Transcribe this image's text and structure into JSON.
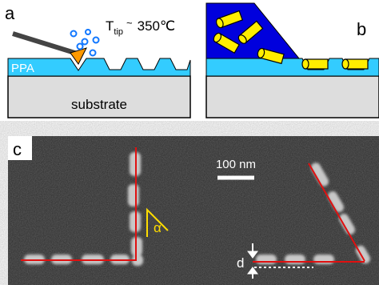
{
  "panel_a": {
    "label": "a",
    "tip_symbol": "T",
    "tip_subscript": "tip",
    "approx": "~",
    "temperature": "350℃",
    "layer": "PPA",
    "substrate": "substrate"
  },
  "panel_b": {
    "label": "b"
  },
  "panel_c": {
    "label": "c",
    "scale_bar": "100 nm",
    "angle": "α",
    "distance": "d"
  }
}
